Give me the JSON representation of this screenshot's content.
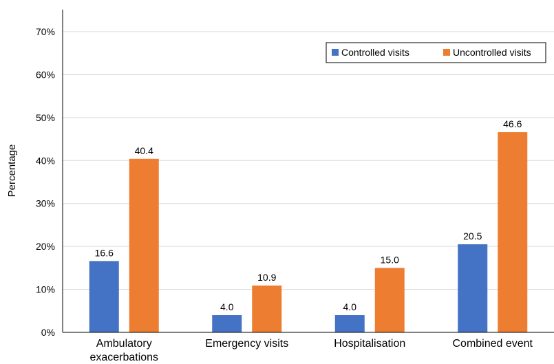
{
  "chart_data": {
    "type": "bar",
    "title": "",
    "xlabel": "",
    "ylabel": "Percentage",
    "categories": [
      [
        "Ambulatory",
        "exacerbations"
      ],
      [
        "Emergency visits"
      ],
      [
        "Hospitalisation"
      ],
      [
        "Combined event"
      ]
    ],
    "series": [
      {
        "name": "Controlled visits",
        "color": "#4472C4",
        "values": [
          16.6,
          4.0,
          4.0,
          20.5
        ],
        "labels": [
          "16.6",
          "4.0",
          "4.0",
          "20.5"
        ]
      },
      {
        "name": "Uncontrolled visits",
        "color": "#ED7D31",
        "values": [
          40.4,
          10.9,
          15.0,
          46.6
        ],
        "labels": [
          "40.4",
          "10.9",
          "15.0",
          "46.6"
        ]
      }
    ],
    "ylim": [
      0,
      70
    ],
    "yticks": [
      0,
      10,
      20,
      30,
      40,
      50,
      60,
      70
    ],
    "ytick_labels": [
      "0%",
      "10%",
      "20%",
      "30%",
      "40%",
      "50%",
      "60%",
      "70%"
    ],
    "grid": true,
    "legend_position": "top-right"
  }
}
